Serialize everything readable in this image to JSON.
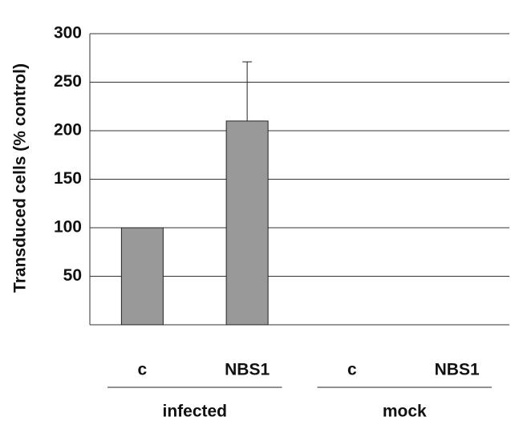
{
  "chart_data": {
    "type": "bar",
    "y_label": "Transduced cells (% control)",
    "categories": [
      "c",
      "NBS1",
      "c",
      "NBS1"
    ],
    "groups": [
      {
        "label": "infected",
        "span": 2
      },
      {
        "label": "mock",
        "span": 2
      }
    ],
    "values": [
      100,
      210,
      0,
      0
    ],
    "errors": [
      null,
      61,
      null,
      null
    ],
    "color": "#999999",
    "ylim": [
      0,
      300
    ],
    "yticks": [
      50,
      100,
      150,
      200,
      250,
      300
    ],
    "grid": true
  }
}
